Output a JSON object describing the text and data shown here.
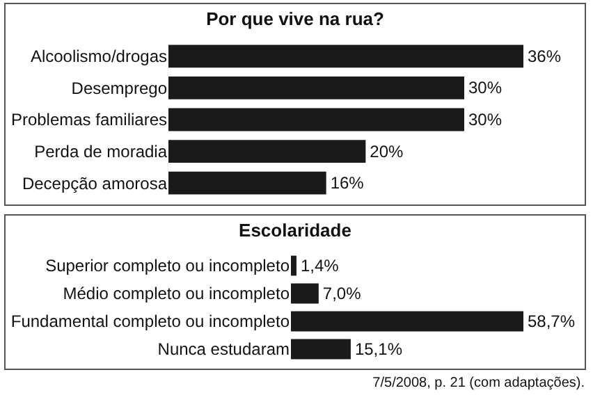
{
  "chart_data": [
    {
      "type": "bar",
      "orientation": "horizontal",
      "title": "Por que vive na rua?",
      "categories": [
        "Alcoolismo/drogas",
        "Desemprego",
        "Problemas familiares",
        "Perda de moradia",
        "Decepção amorosa"
      ],
      "values": [
        36,
        30,
        30,
        20,
        16
      ],
      "value_labels": [
        "36%",
        "30%",
        "30%",
        "20%",
        "16%"
      ],
      "color": "#1a1a1a"
    },
    {
      "type": "bar",
      "orientation": "horizontal",
      "title": "Escolaridade",
      "categories": [
        "Superior completo ou incompleto",
        "Médio completo ou incompleto",
        "Fundamental completo ou incompleto",
        "Nunca estudaram"
      ],
      "values": [
        1.4,
        7.0,
        58.7,
        15.1
      ],
      "value_labels": [
        "1,4%",
        "7,0%",
        "58,7%",
        "15,1%"
      ],
      "color": "#1a1a1a",
      "annotations": [
        "7/5/2008, p. 21 (com adaptações)."
      ]
    }
  ]
}
